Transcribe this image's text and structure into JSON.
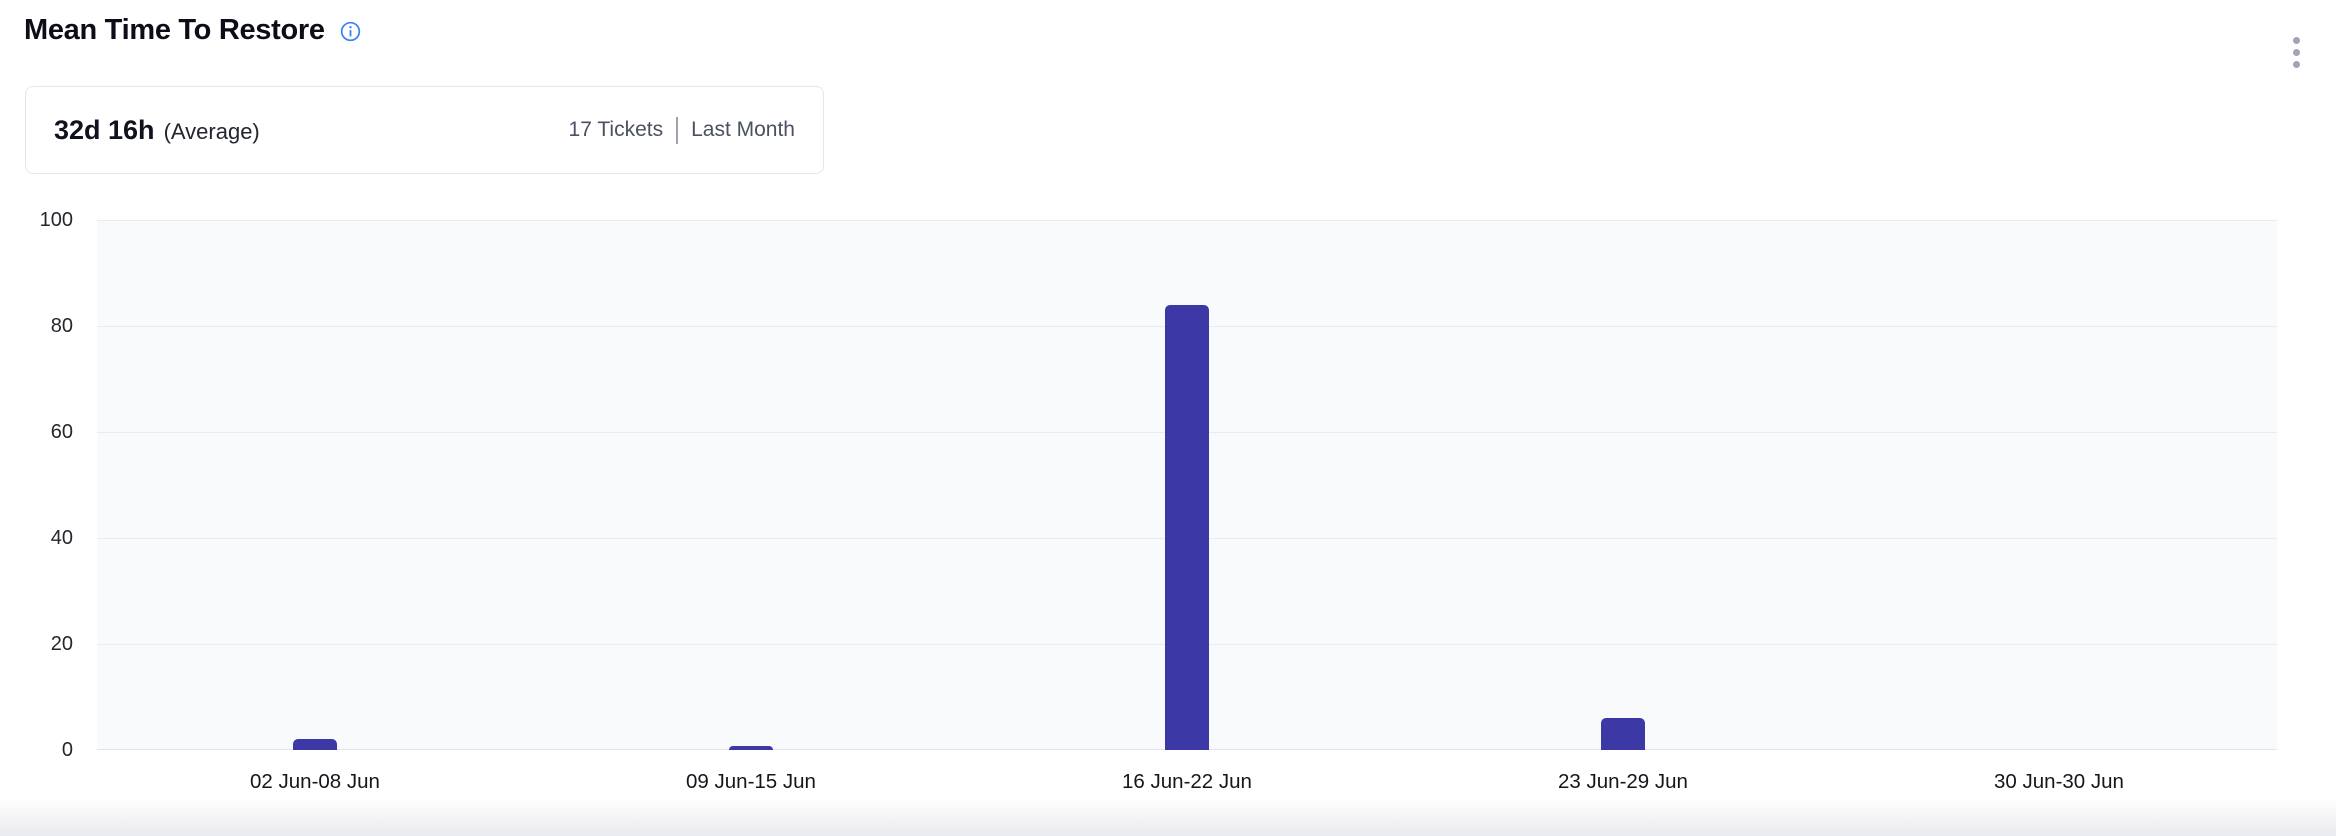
{
  "header": {
    "title": "Mean Time To Restore",
    "info_icon": "info-icon",
    "menu_icon": "kebab-menu-icon"
  },
  "summary": {
    "value": "32d 16h",
    "value_suffix": "(Average)",
    "tickets": "17 Tickets",
    "period": "Last Month"
  },
  "colors": {
    "bar": "#3c39a6",
    "info_icon": "#3b82f6",
    "plot_background": "#f8fafc",
    "gridline": "#e9ebef",
    "muted_text": "#4b5160",
    "menu_dots": "#a2a4b5"
  },
  "chart_data": {
    "type": "bar",
    "title": "Mean Time To Restore",
    "categories": [
      "02 Jun-08 Jun",
      "09 Jun-15 Jun",
      "16 Jun-22 Jun",
      "23 Jun-29 Jun",
      "30 Jun-30 Jun"
    ],
    "values": [
      2,
      0.7,
      84,
      6,
      0
    ],
    "yticks": [
      0,
      20,
      40,
      60,
      80,
      100
    ],
    "ylim": [
      0,
      100
    ],
    "xlabel": "",
    "ylabel": "",
    "grid": true,
    "legend": false,
    "bar_color": "#3c39a6"
  }
}
